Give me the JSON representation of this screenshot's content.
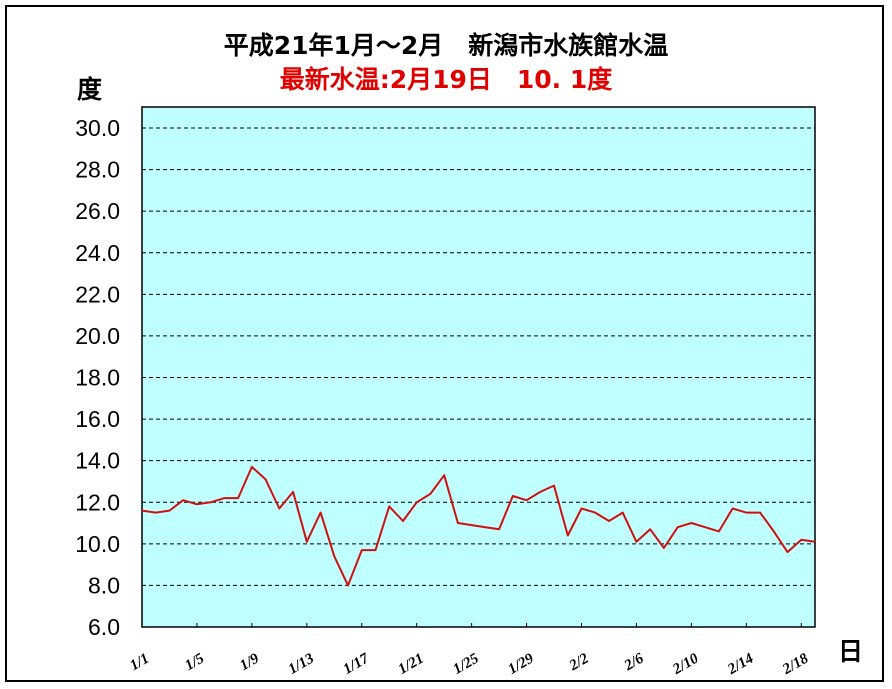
{
  "title": "平成21年1月～2月　新潟市水族館水温",
  "subtitle": "最新水温:2月19日　10. 1度",
  "colors": {
    "plot_background": "#c0ffff",
    "line": "#d01010",
    "title": "#000000",
    "subtitle": "#e00000",
    "grid": "#000000"
  },
  "chart_data": {
    "type": "line",
    "title": "平成21年1月～2月　新潟市水族館水温",
    "subtitle": "最新水温:2月19日　10. 1度",
    "xlabel": "日",
    "ylabel": "度",
    "ylim": [
      6.0,
      30.0
    ],
    "yticks": [
      "6.0",
      "8.0",
      "10.0",
      "12.0",
      "14.0",
      "16.0",
      "18.0",
      "20.0",
      "22.0",
      "24.0",
      "26.0",
      "28.0",
      "30.0"
    ],
    "xtick_labels": [
      "1/1",
      "1/5",
      "1/9",
      "1/13",
      "1/17",
      "1/21",
      "1/25",
      "1/29",
      "2/2",
      "2/6",
      "2/10",
      "2/14",
      "2/18"
    ],
    "grid": "horizontal dashed",
    "legend": "none",
    "series": [
      {
        "name": "水温",
        "x": [
          "1/1",
          "1/2",
          "1/3",
          "1/4",
          "1/5",
          "1/6",
          "1/7",
          "1/8",
          "1/9",
          "1/10",
          "1/11",
          "1/12",
          "1/13",
          "1/14",
          "1/15",
          "1/16",
          "1/17",
          "1/18",
          "1/19",
          "1/20",
          "1/21",
          "1/22",
          "1/23",
          "1/24",
          "1/25",
          "1/26",
          "1/27",
          "1/28",
          "1/29",
          "1/30",
          "1/31",
          "2/1",
          "2/2",
          "2/3",
          "2/4",
          "2/5",
          "2/6",
          "2/7",
          "2/8",
          "2/9",
          "2/10",
          "2/11",
          "2/12",
          "2/13",
          "2/14",
          "2/15",
          "2/16",
          "2/17",
          "2/18",
          "2/19"
        ],
        "values": [
          11.6,
          11.5,
          11.6,
          12.1,
          11.9,
          12.0,
          12.2,
          12.2,
          13.7,
          13.1,
          11.7,
          12.5,
          10.1,
          11.5,
          9.4,
          8.0,
          9.7,
          9.7,
          11.8,
          11.1,
          12.0,
          12.4,
          13.3,
          11.0,
          10.9,
          10.8,
          10.7,
          12.3,
          12.1,
          12.5,
          12.8,
          10.4,
          11.7,
          11.5,
          11.1,
          11.5,
          10.1,
          10.7,
          9.8,
          10.8,
          11.0,
          10.8,
          10.6,
          11.7,
          11.5,
          11.5,
          10.6,
          9.6,
          10.2,
          10.1
        ]
      }
    ]
  }
}
